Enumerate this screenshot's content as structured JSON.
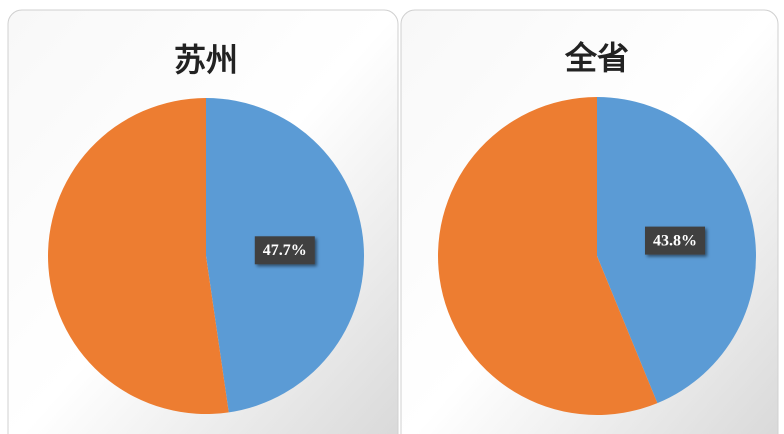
{
  "chart_data": [
    {
      "type": "pie",
      "title": "苏州",
      "categories": [
        null,
        null
      ],
      "values": [
        47.7,
        52.3
      ],
      "value_labels": [
        "47.7%",
        null
      ],
      "colors": [
        "#5b9bd5",
        "#ed7d31"
      ]
    },
    {
      "type": "pie",
      "title": "全省",
      "categories": [
        null,
        null
      ],
      "values": [
        43.8,
        56.2
      ],
      "value_labels": [
        "43.8%",
        null
      ],
      "colors": [
        "#5b9bd5",
        "#ed7d31"
      ]
    }
  ]
}
